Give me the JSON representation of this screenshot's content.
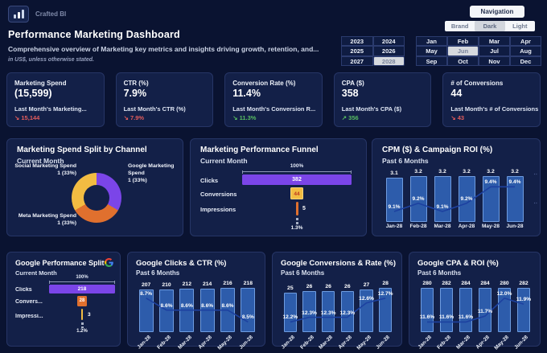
{
  "header": {
    "brand": "Crafted BI",
    "title": "Performance Marketing Dashboard",
    "subtitle": "Comprehensive overview of Marketing key metrics and insights driving growth, retention, and...",
    "note": "in US$, unless otherwise stated.",
    "navigation_label": "Navigation"
  },
  "theme_toggle": {
    "options": [
      "Brand",
      "Dark",
      "Light"
    ],
    "active": "Dark"
  },
  "year_picker": {
    "years": [
      "2023",
      "2024",
      "2025",
      "2026",
      "2027",
      "2028"
    ],
    "selected": "2028"
  },
  "month_picker": {
    "months": [
      "Jan",
      "Feb",
      "Mar",
      "Apr",
      "May",
      "Jun",
      "Jul",
      "Aug",
      "Sep",
      "Oct",
      "Nov",
      "Dec"
    ],
    "selected": "Jun"
  },
  "kpis": [
    {
      "label": "Marketing Spend",
      "value": "(15,599)",
      "prev_label": "Last Month's Marketing...",
      "prev_value": "15,144",
      "trend_arrow": "↘",
      "trend_color": "#e25c5c"
    },
    {
      "label": "CTR (%)",
      "value": "7.9%",
      "prev_label": "Last Month's CTR (%)",
      "prev_value": "7.9%",
      "trend_arrow": "↘",
      "trend_color": "#e25c5c"
    },
    {
      "label": "Conversion Rate (%)",
      "value": "11.4%",
      "prev_label": "Last Month's Conversion R...",
      "prev_value": "11.3%",
      "trend_arrow": "↘",
      "trend_color": "#57bd61"
    },
    {
      "label": "CPA ($)",
      "value": "358",
      "prev_label": "Last Month's CPA ($)",
      "prev_value": "356",
      "trend_arrow": "↗",
      "trend_color": "#57bd61"
    },
    {
      "label": "# of Conversions",
      "value": "44",
      "prev_label": "Last Month's # of Conversions",
      "prev_value": "43",
      "trend_arrow": "↘",
      "trend_color": "#e25c5c"
    }
  ],
  "chart_data": [
    {
      "type": "pie",
      "title": "Marketing Spend Split by Channel",
      "subtitle": "Current Month",
      "donut": true,
      "slices": [
        {
          "name": "Google Marketing Spend",
          "share_label": "1 (33%)",
          "value": 1,
          "pct": 33,
          "color": "#7b45e8"
        },
        {
          "name": "Meta Marketing Spend",
          "share_label": "1 (33%)",
          "value": 1,
          "pct": 33,
          "color": "#e0702e"
        },
        {
          "name": "Social Marketing Spend",
          "share_label": "1 (33%)",
          "value": 1,
          "pct": 33,
          "color": "#f2bc42"
        }
      ]
    },
    {
      "type": "funnel",
      "title": "Marketing Performance Funnel",
      "subtitle": "Current Month",
      "axis_top_label": "100%",
      "rows": [
        {
          "label": "Clicks",
          "value": "382",
          "width_pct": 100,
          "color": "#7b45e8",
          "value_color": "#ffffff"
        },
        {
          "label": "Conversions",
          "value": "44",
          "width_pct": 11.5,
          "color": "#f2bc42",
          "value_color": "#bf3a1f"
        },
        {
          "label": "Impressions",
          "value": "5",
          "width_pct": 2,
          "color": "#e0702e",
          "value_color": "#ffffff"
        }
      ],
      "footer_pct": "1.3%"
    },
    {
      "type": "funnel",
      "title": "Google Performance Split",
      "subtitle": "Current Month",
      "axis_top_label": "100%",
      "rows": [
        {
          "label": "Clicks",
          "value": "218",
          "width_pct": 100,
          "color": "#7b45e8",
          "value_color": "#ffffff"
        },
        {
          "label": "Convers...",
          "value": "28",
          "width_pct": 13,
          "color": "#e0702e",
          "value_color": "#ffffff"
        },
        {
          "label": "Impressi...",
          "value": "3",
          "width_pct": 2.5,
          "color": "#f2bc42",
          "value_color": "#ffffff"
        }
      ],
      "footer_pct": "1.2%"
    },
    {
      "type": "bar+line",
      "title": "CPM ($) & Campaign ROI (%)",
      "subtitle": "Past 6 Months",
      "categories": [
        "Jan-28",
        "Feb-28",
        "Mar-28",
        "Apr-28",
        "May-28",
        "Jun-28"
      ],
      "bar_series": {
        "name": "CPM ($)",
        "values": [
          3.1,
          3.2,
          3.2,
          3.2,
          3.2,
          3.2
        ],
        "labels": [
          "3.1",
          "3.2",
          "3.2",
          "3.2",
          "3.2",
          "3.2"
        ]
      },
      "line_series": {
        "name": "Campaign ROI (%)",
        "values": [
          9.1,
          9.2,
          9.1,
          9.2,
          9.4,
          9.4
        ],
        "labels": [
          "9.1%",
          "9.2%",
          "9.1%",
          "9.2%",
          "9.4%",
          "9.4%"
        ]
      },
      "rotate_x_labels": false
    },
    {
      "type": "bar+line",
      "title": "Google Clicks & CTR (%)",
      "subtitle": "Past 6 Months",
      "categories": [
        "Jan-28",
        "Feb-28",
        "Mar-28",
        "Apr-28",
        "May-28",
        "Jun-28"
      ],
      "bar_series": {
        "name": "Google Clicks",
        "values": [
          207,
          210,
          212,
          214,
          216,
          218
        ],
        "labels": [
          "207",
          "210",
          "212",
          "214",
          "216",
          "218"
        ]
      },
      "line_series": {
        "name": "CTR (%)",
        "values": [
          8.7,
          8.6,
          8.6,
          8.6,
          8.6,
          8.5
        ],
        "labels": [
          "8.7%",
          "8.6%",
          "8.6%",
          "8.6%",
          "8.6%",
          "8.5%"
        ]
      },
      "rotate_x_labels": true
    },
    {
      "type": "bar+line",
      "title": "Google Conversions & Rate (%)",
      "subtitle": "Past 6 Months",
      "categories": [
        "Jan-28",
        "Feb-28",
        "Mar-28",
        "Apr-28",
        "May-28",
        "Jun-28"
      ],
      "bar_series": {
        "name": "Google Conversions",
        "values": [
          25,
          26,
          26,
          26,
          27,
          28
        ],
        "labels": [
          "25",
          "26",
          "26",
          "26",
          "27",
          "28"
        ]
      },
      "line_series": {
        "name": "Conversion Rate (%)",
        "values": [
          12.2,
          12.3,
          12.3,
          12.3,
          12.6,
          12.7
        ],
        "labels": [
          "12.2%",
          "12.3%",
          "12.3%",
          "12.3%",
          "12.6%",
          "12.7%"
        ]
      },
      "rotate_x_labels": true
    },
    {
      "type": "bar+line",
      "title": "Google CPA & ROI (%)",
      "subtitle": "Past 6 Months",
      "categories": [
        "Jan-28",
        "Feb-28",
        "Mar-28",
        "Apr-28",
        "May-28",
        "Jun-28"
      ],
      "bar_series": {
        "name": "Google CPA",
        "values": [
          280,
          282,
          284,
          284,
          280,
          282
        ],
        "labels": [
          "280",
          "282",
          "284",
          "284",
          "280",
          "282"
        ]
      },
      "line_series": {
        "name": "ROI (%)",
        "values": [
          11.6,
          11.6,
          11.6,
          11.7,
          12.0,
          11.9
        ],
        "labels": [
          "11.6%",
          "11.6%",
          "11.6%",
          "11.7%",
          "12.0%",
          "11.9%"
        ]
      },
      "rotate_x_labels": true
    }
  ],
  "colors": {
    "bar_fill": "#2d5cab",
    "bar_border": "#6e9ce0",
    "line": "#1d41a0",
    "red": "#e25c5c",
    "green": "#57bd61",
    "purple": "#7b45e8",
    "orange": "#e0702e",
    "yellow": "#f2bc42"
  }
}
